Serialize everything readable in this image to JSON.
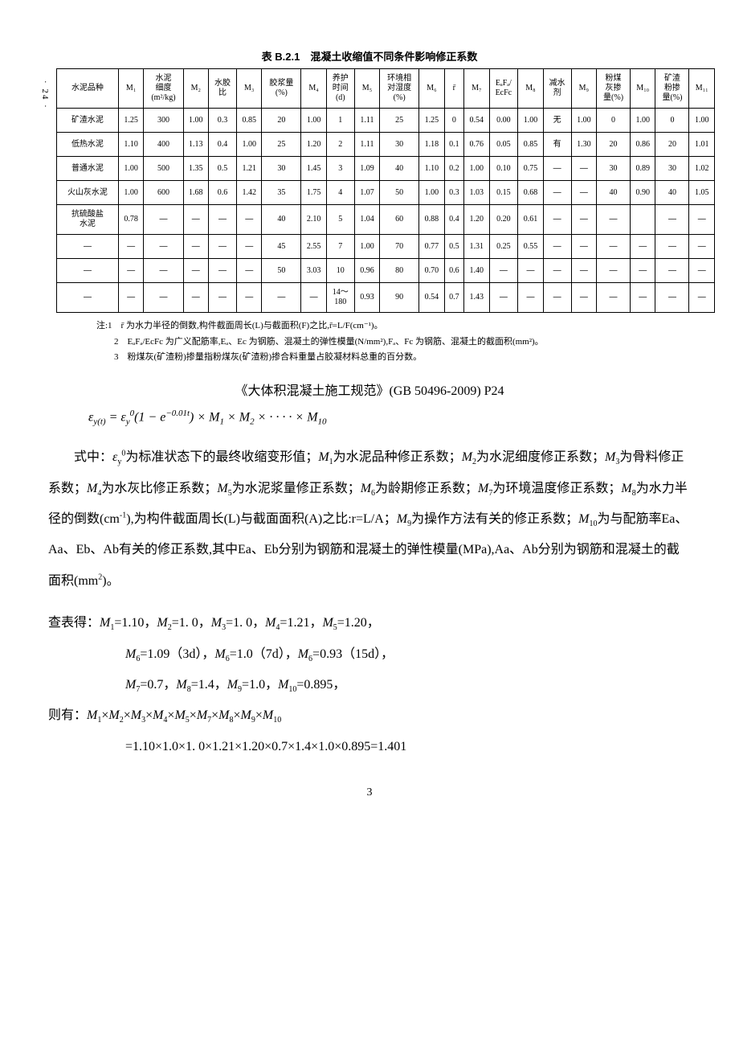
{
  "pageMarker": "· 24 ·",
  "tableTitle": "表 B.2.1　混凝土收缩值不同条件影响修正系数",
  "headers": [
    "水泥品种",
    "M₁",
    "水泥\n细度\n(m²/kg)",
    "M₂",
    "水胶\n比",
    "M₃",
    "胶浆量\n(%)",
    "M₄",
    "养护\n时间\n(d)",
    "M₅",
    "环境相\n对湿度\n(%)",
    "M₆",
    "r̄",
    "M₇",
    "EₐFₐ/\nEcFc",
    "M₈",
    "减水\n剂",
    "M₉",
    "粉煤\n灰掺\n量(%)",
    "M₁₀",
    "矿渣\n粉掺\n量(%)",
    "M₁₁"
  ],
  "rows": [
    [
      "矿渣水泥",
      "1.25",
      "300",
      "1.00",
      "0.3",
      "0.85",
      "20",
      "1.00",
      "1",
      "1.11",
      "25",
      "1.25",
      "0",
      "0.54",
      "0.00",
      "1.00",
      "无",
      "1.00",
      "0",
      "1.00",
      "0",
      "1.00"
    ],
    [
      "低热水泥",
      "1.10",
      "400",
      "1.13",
      "0.4",
      "1.00",
      "25",
      "1.20",
      "2",
      "1.11",
      "30",
      "1.18",
      "0.1",
      "0.76",
      "0.05",
      "0.85",
      "有",
      "1.30",
      "20",
      "0.86",
      "20",
      "1.01"
    ],
    [
      "普通水泥",
      "1.00",
      "500",
      "1.35",
      "0.5",
      "1.21",
      "30",
      "1.45",
      "3",
      "1.09",
      "40",
      "1.10",
      "0.2",
      "1.00",
      "0.10",
      "0.75",
      "—",
      "—",
      "30",
      "0.89",
      "30",
      "1.02"
    ],
    [
      "火山灰水泥",
      "1.00",
      "600",
      "1.68",
      "0.6",
      "1.42",
      "35",
      "1.75",
      "4",
      "1.07",
      "50",
      "1.00",
      "0.3",
      "1.03",
      "0.15",
      "0.68",
      "—",
      "—",
      "40",
      "0.90",
      "40",
      "1.05"
    ],
    [
      "抗硫酸盐\n水泥",
      "0.78",
      "—",
      "—",
      "—",
      "—",
      "40",
      "2.10",
      "5",
      "1.04",
      "60",
      "0.88",
      "0.4",
      "1.20",
      "0.20",
      "0.61",
      "—",
      "—",
      "—",
      "",
      "—",
      "—"
    ],
    [
      "—",
      "—",
      "—",
      "—",
      "—",
      "—",
      "45",
      "2.55",
      "7",
      "1.00",
      "70",
      "0.77",
      "0.5",
      "1.31",
      "0.25",
      "0.55",
      "—",
      "—",
      "—",
      "—",
      "—",
      "—"
    ],
    [
      "—",
      "—",
      "—",
      "—",
      "—",
      "—",
      "50",
      "3.03",
      "10",
      "0.96",
      "80",
      "0.70",
      "0.6",
      "1.40",
      "—",
      "—",
      "—",
      "—",
      "—",
      "—",
      "—",
      "—"
    ],
    [
      "—",
      "—",
      "—",
      "—",
      "—",
      "—",
      "—",
      "—",
      "14～\n180",
      "0.93",
      "90",
      "0.54",
      "0.7",
      "1.43",
      "—",
      "—",
      "—",
      "—",
      "—",
      "—",
      "—",
      "—"
    ]
  ],
  "notes": [
    "注:1　r̄ 为水力半径的倒数,构件截面周长(L)与截面积(F)之比,r̄=L/F(cm⁻¹)。",
    "　　2　EₐFₐ/EcFc 为广义配筋率,Eₐ、Ec 为钢筋、混凝土的弹性模量(N/mm²),Fₐ、Fc 为钢筋、混凝土的截面积(mm²)。",
    "　　3　粉煤灰(矿渣粉)掺量指粉煤灰(矿渣粉)掺合料重量占胶凝材料总重的百分数。"
  ],
  "sourceLine": "《大体积混凝土施工规范》(GB 50496-2009) P24",
  "mainFormula": "ε<sub>y(t)</sub> = ε<sub>y</sub><sup>0</sup>(1 − e<sup>−0.01t</sup>) × M<sub>1</sub> × M<sub>2</sub> × · · · · × M<sub>10</sub>",
  "bodyText": "式中：<span class='mvar'>ε<sub>y</sub><sup>0</sup></span>为标准状态下的最终收缩变形值；<span class='mvar'>M</span><sub>1</sub>为水泥品种修正系数；<span class='mvar'>M</span><sub>2</sub>为水泥细度修正系数；<span class='mvar'>M</span><sub>3</sub>为骨料修正系数；<span class='mvar'>M</span><sub>4</sub>为水灰比修正系数；<span class='mvar'>M</span><sub>5</sub>为水泥浆量修正系数；<span class='mvar'>M</span><sub>6</sub>为龄期修正系数；<span class='mvar'>M</span><sub>7</sub>为环境温度修正系数；<span class='mvar'>M</span><sub>8</sub>为水力半径的倒数(cm<sup>-1</sup>),为构件截面周长(L)与截面面积(A)之比:r=L/A；<span class='mvar'>M</span><sub>9</sub>为操作方法有关的修正系数；<span class='mvar'>M</span><sub>10</sub>为与配筋率Ea、Aa、Eb、Ab有关的修正系数,其中Ea、Eb分别为钢筋和混凝土的弹性模量(MPa),Aa、Ab分别为钢筋和混凝土的截面积(mm<sup>2</sup>)。",
  "lookupLines": [
    "查表得：<span class='mvar'>M</span><sub>1</sub>=1.10，<span class='mvar'>M</span><sub>2</sub>=1.&nbsp;0，<span class='mvar'>M</span><sub>3</sub>=1.&nbsp;0，<span class='mvar'>M</span><sub>4</sub>=1.21，<span class='mvar'>M</span><sub>5</sub>=1.20，",
    "<span class='mvar'>M</span><sub>6</sub>=1.09（3d），<span class='mvar'>M</span><sub>6</sub>=1.0（7d），<span class='mvar'>M</span><sub>6</sub>=0.93（15d），",
    "<span class='mvar'>M</span><sub>7</sub>=0.7，<span class='mvar'>M</span><sub>8</sub>=1.4，<span class='mvar'>M</span><sub>9</sub>=1.0，<span class='mvar'>M</span><sub>10</sub>=0.895，"
  ],
  "resultLines": [
    "则有：<span class='mvar'>M</span><sub>1</sub>×<span class='mvar'>M</span><sub>2</sub>×<span class='mvar'>M</span><sub>3</sub>×<span class='mvar'>M</span><sub>4</sub>×<span class='mvar'>M</span><sub>5</sub>×<span class='mvar'>M</span><sub>7</sub>×<span class='mvar'>M</span><sub>8</sub>×<span class='mvar'>M</span><sub>9</sub>×<span class='mvar'>M</span><sub>10</sub>",
    "=1.10×1.0×1.&nbsp;0×1.21×1.20×0.7×1.4×1.0×0.895=1.401"
  ],
  "pageNum": "3"
}
